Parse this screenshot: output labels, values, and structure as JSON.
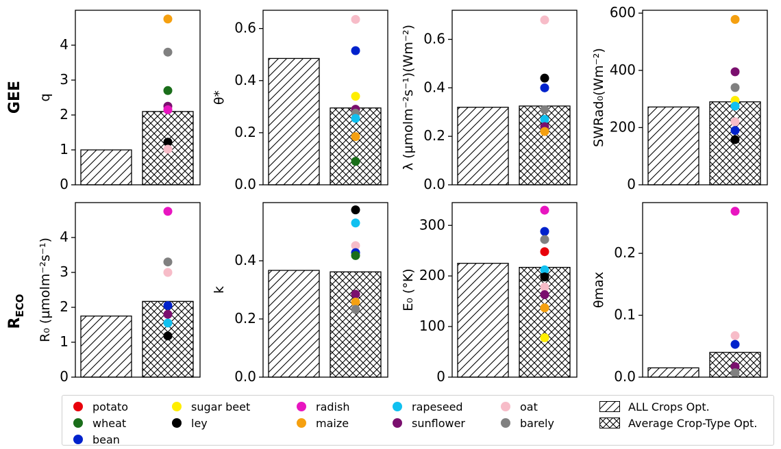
{
  "row_labels": {
    "gee": "GEE",
    "reco_main": "R",
    "reco_sub": "ECO"
  },
  "legend": {
    "crops": [
      {
        "name": "potato",
        "color": "#e8000b"
      },
      {
        "name": "wheat",
        "color": "#1a6e1a"
      },
      {
        "name": "bean",
        "color": "#0022cc"
      },
      {
        "name": "sugar beet",
        "color": "#ffee00"
      },
      {
        "name": "ley",
        "color": "#000000"
      },
      {
        "name": "radish",
        "color": "#e815c0"
      },
      {
        "name": "maize",
        "color": "#f5a010"
      },
      {
        "name": "rapeseed",
        "color": "#10c0f0"
      },
      {
        "name": "sunflower",
        "color": "#7a0f6e"
      },
      {
        "name": "oat",
        "color": "#f7bcc8"
      },
      {
        "name": "barely",
        "color": "#808080"
      }
    ],
    "bars": [
      {
        "name": "ALL Crops Opt.",
        "hatch": "diag"
      },
      {
        "name": "Average Crop-Type Opt.",
        "hatch": "cross"
      }
    ]
  },
  "chart_data": [
    {
      "type": "bar",
      "panel": "q",
      "ylabel": "q",
      "ylim": [
        0,
        5
      ],
      "yticks": [
        "0",
        "1",
        "2",
        "3",
        "4"
      ],
      "ytick_values": [
        0,
        1,
        2,
        3,
        4
      ],
      "categories": [
        "ALL Crops Opt.",
        "Average Crop-Type Opt."
      ],
      "values": [
        1.0,
        2.1
      ],
      "crop_points": {
        "maize": 4.75,
        "barely": 3.8,
        "wheat": 2.7,
        "sunflower": 2.25,
        "radish": 2.15,
        "ley": 1.22,
        "oat": 1.02
      }
    },
    {
      "type": "bar",
      "panel": "theta_star",
      "ylabel": "θ*",
      "ylim": [
        0,
        0.67
      ],
      "yticks": [
        "0.0",
        "0.2",
        "0.4",
        "0.6"
      ],
      "ytick_values": [
        0,
        0.2,
        0.4,
        0.6
      ],
      "categories": [
        "ALL Crops Opt.",
        "Average Crop-Type Opt."
      ],
      "values": [
        0.485,
        0.295
      ],
      "crop_points": {
        "oat": 0.635,
        "bean": 0.515,
        "sugar beet": 0.34,
        "sunflower": 0.29,
        "barely": 0.275,
        "rapeseed": 0.255,
        "maize": 0.185,
        "wheat": 0.09
      }
    },
    {
      "type": "bar",
      "panel": "lambda",
      "ylabel": "λ (µmolm⁻²s⁻¹)(Wm⁻²)",
      "ylim": [
        0,
        0.72
      ],
      "yticks": [
        "0.0",
        "0.2",
        "0.4",
        "0.6"
      ],
      "ytick_values": [
        0,
        0.2,
        0.4,
        0.6
      ],
      "categories": [
        "ALL Crops Opt.",
        "Average Crop-Type Opt."
      ],
      "values": [
        0.32,
        0.325
      ],
      "crop_points": {
        "oat": 0.68,
        "ley": 0.44,
        "bean": 0.4,
        "barely": 0.31,
        "rapeseed": 0.27,
        "sunflower": 0.24,
        "maize": 0.22
      }
    },
    {
      "type": "bar",
      "panel": "swrad0",
      "ylabel": "SWRad₀(Wm⁻²)",
      "ylim": [
        0,
        610
      ],
      "yticks": [
        "0",
        "200",
        "400",
        "600"
      ],
      "ytick_values": [
        0,
        200,
        400,
        600
      ],
      "categories": [
        "ALL Crops Opt.",
        "Average Crop-Type Opt."
      ],
      "values": [
        272,
        290
      ],
      "crop_points": {
        "maize": 578,
        "sunflower": 395,
        "barely": 340,
        "sugar beet": 295,
        "rapeseed": 275,
        "oat": 220,
        "bean": 190,
        "ley": 158
      }
    },
    {
      "type": "bar",
      "panel": "r0",
      "ylabel": "R₀ (µmolm⁻²s⁻¹)",
      "ylim": [
        0,
        5
      ],
      "yticks": [
        "0",
        "1",
        "2",
        "3",
        "4"
      ],
      "ytick_values": [
        0,
        1,
        2,
        3,
        4
      ],
      "categories": [
        "ALL Crops Opt.",
        "Average Crop-Type Opt."
      ],
      "values": [
        1.75,
        2.17
      ],
      "crop_points": {
        "radish": 4.75,
        "barely": 3.3,
        "oat": 3.0,
        "bean": 2.05,
        "sunflower": 1.8,
        "rapeseed": 1.55,
        "ley": 1.18
      }
    },
    {
      "type": "bar",
      "panel": "k",
      "ylabel": "k",
      "ylim": [
        0,
        0.6
      ],
      "yticks": [
        "0.0",
        "0.2",
        "0.4"
      ],
      "ytick_values": [
        0,
        0.2,
        0.4
      ],
      "categories": [
        "ALL Crops Opt.",
        "Average Crop-Type Opt."
      ],
      "values": [
        0.367,
        0.362
      ],
      "crop_points": {
        "ley": 0.575,
        "rapeseed": 0.53,
        "oat": 0.452,
        "bean": 0.428,
        "wheat": 0.418,
        "sunflower": 0.285,
        "maize": 0.258,
        "barely": 0.233
      }
    },
    {
      "type": "bar",
      "panel": "e0",
      "ylabel": "E₀ (°K)",
      "ylim": [
        0,
        345
      ],
      "yticks": [
        "0",
        "100",
        "200",
        "300"
      ],
      "ytick_values": [
        0,
        100,
        200,
        300
      ],
      "categories": [
        "ALL Crops Opt.",
        "Average Crop-Type Opt."
      ],
      "values": [
        225,
        217
      ],
      "crop_points": {
        "radish": 330,
        "bean": 288,
        "barely": 272,
        "potato": 248,
        "rapeseed": 212,
        "ley": 198,
        "oat": 178,
        "sunflower": 163,
        "maize": 137,
        "sugar beet": 78
      }
    },
    {
      "type": "bar",
      "panel": "theta_max",
      "ylabel": "θmax",
      "ylim": [
        0,
        0.282
      ],
      "yticks": [
        "0.0",
        "0.1",
        "0.2"
      ],
      "ytick_values": [
        0,
        0.1,
        0.2
      ],
      "categories": [
        "ALL Crops Opt.",
        "Average Crop-Type Opt."
      ],
      "values": [
        0.015,
        0.04
      ],
      "crop_points": {
        "radish": 0.268,
        "oat": 0.067,
        "bean": 0.053,
        "sunflower": 0.017,
        "barely": 0.007
      }
    }
  ]
}
